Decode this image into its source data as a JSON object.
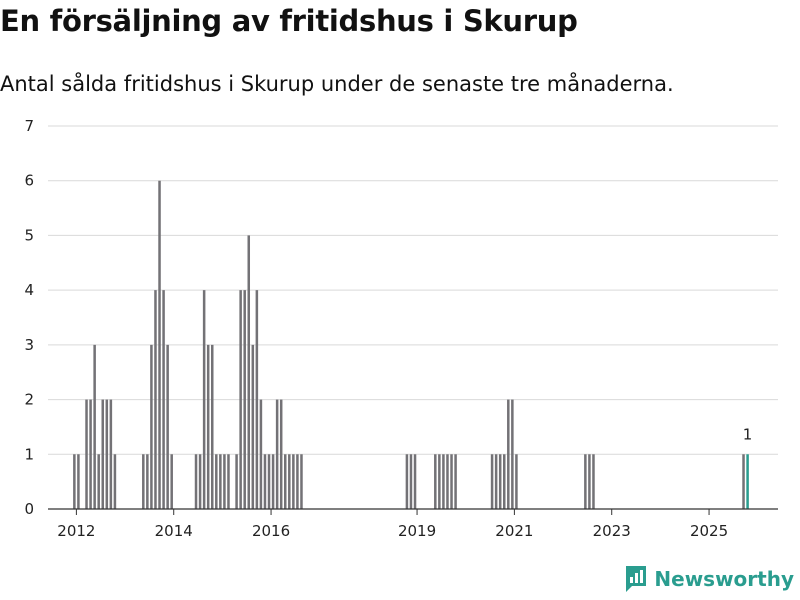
{
  "title": "En försäljning av fritidshus i Skurup",
  "subtitle": "Antal sålda fritidshus i Skurup under de senaste tre månaderna.",
  "brand": {
    "name": "Newsworthy"
  },
  "colors": {
    "bar": "#737276",
    "highlight": "#2a9d8f",
    "grid": "#d9d9d9",
    "brand": "#2a9d8f"
  },
  "chart_data": {
    "type": "bar",
    "title": "",
    "xlabel": "",
    "ylabel": "",
    "ylim": [
      0,
      7
    ],
    "yticks": [
      0,
      1,
      2,
      3,
      4,
      5,
      6,
      7
    ],
    "xlim": [
      "2011-06",
      "2026-06"
    ],
    "xticks": [
      "2012",
      "2014",
      "2016",
      "2019",
      "2021",
      "2023",
      "2025"
    ],
    "grid": true,
    "series": [
      {
        "x": [
          "2011-12",
          "2012-01",
          "2012-03",
          "2012-04",
          "2012-05",
          "2012-06",
          "2012-07",
          "2012-08",
          "2012-09",
          "2012-10",
          "2013-05",
          "2013-06",
          "2013-07",
          "2013-08",
          "2013-09",
          "2013-10",
          "2013-11",
          "2013-12",
          "2014-06",
          "2014-07",
          "2014-08",
          "2014-09",
          "2014-10",
          "2014-11",
          "2014-12",
          "2015-01",
          "2015-02",
          "2015-04",
          "2015-05",
          "2015-06",
          "2015-07",
          "2015-08",
          "2015-09",
          "2015-10",
          "2015-11",
          "2015-12",
          "2016-01",
          "2016-02",
          "2016-03",
          "2016-04",
          "2016-05",
          "2016-06",
          "2016-07",
          "2016-08",
          "2018-10",
          "2018-11",
          "2018-12",
          "2019-05",
          "2019-06",
          "2019-07",
          "2019-08",
          "2019-09",
          "2019-10",
          "2020-07",
          "2020-08",
          "2020-09",
          "2020-10",
          "2020-11",
          "2020-12",
          "2021-01",
          "2022-06",
          "2022-07",
          "2022-08",
          "2025-09",
          "2025-10"
        ],
        "values": [
          1,
          1,
          2,
          2,
          3,
          1,
          2,
          2,
          2,
          1,
          1,
          1,
          3,
          4,
          6,
          4,
          3,
          1,
          1,
          1,
          4,
          3,
          3,
          1,
          1,
          1,
          1,
          1,
          4,
          4,
          5,
          3,
          4,
          2,
          1,
          1,
          1,
          2,
          2,
          1,
          1,
          1,
          1,
          1,
          1,
          1,
          1,
          1,
          1,
          1,
          1,
          1,
          1,
          1,
          1,
          1,
          1,
          2,
          2,
          1,
          1,
          1,
          1,
          1,
          1
        ]
      }
    ],
    "annotations": [
      {
        "x": "2025-10",
        "label": "1"
      }
    ]
  }
}
